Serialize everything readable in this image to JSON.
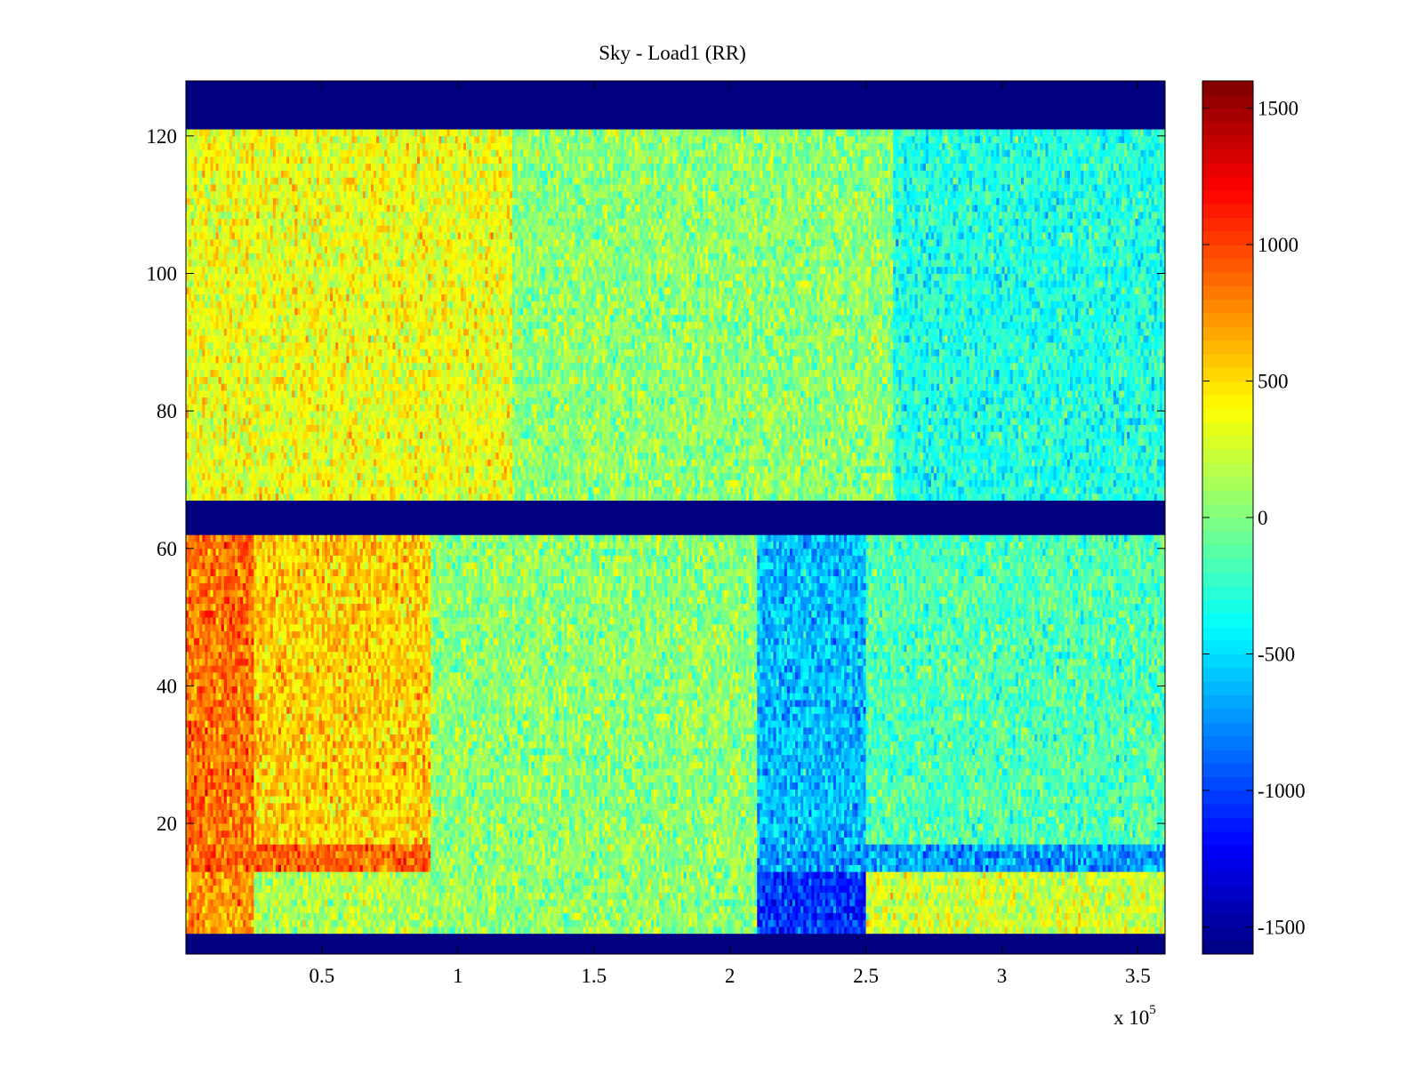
{
  "chart_data": {
    "type": "heatmap",
    "title": "Sky - Load1 (RR)",
    "xlabel": "",
    "ylabel": "",
    "x_multiplier_label": "x 10",
    "x_multiplier_exponent": "5",
    "xlim": [
      0,
      3.6
    ],
    "ylim": [
      1,
      128
    ],
    "xticks": [
      0.5,
      1,
      1.5,
      2,
      2.5,
      3,
      3.5
    ],
    "xtick_labels": [
      "0.5",
      "1",
      "1.5",
      "2",
      "2.5",
      "3",
      "3.5"
    ],
    "yticks": [
      20,
      40,
      60,
      80,
      100,
      120
    ],
    "ytick_labels": [
      "20",
      "40",
      "60",
      "80",
      "100",
      "120"
    ],
    "colormap": "jet",
    "clim": [
      -1600,
      1600
    ],
    "colorbar_ticks": [
      1500,
      1000,
      500,
      0,
      -500,
      -1000,
      -1500
    ],
    "colorbar_tick_labels": [
      "1500",
      "1000",
      "500",
      "0",
      "-500",
      "-1000",
      "-1500"
    ],
    "masked_rows": [
      {
        "y_from": 1,
        "y_to": 4,
        "value": -1600
      },
      {
        "y_from": 62,
        "y_to": 67.5,
        "value": -1600
      },
      {
        "y_from": 121.5,
        "y_to": 128,
        "value": -1600
      }
    ],
    "regions": [
      {
        "x_from": 0,
        "x_to": 0.25,
        "y_from": 17,
        "y_to": 62,
        "mean": 850
      },
      {
        "x_from": 0.25,
        "x_to": 0.9,
        "y_from": 17,
        "y_to": 62,
        "mean": 550
      },
      {
        "x_from": 0,
        "x_to": 0.9,
        "y_from": 13,
        "y_to": 17,
        "mean": 900
      },
      {
        "x_from": 0,
        "x_to": 0.25,
        "y_from": 4,
        "y_to": 13,
        "mean": 700
      },
      {
        "x_from": 0.25,
        "x_to": 0.9,
        "y_from": 4,
        "y_to": 13,
        "mean": 150
      },
      {
        "x_from": 0.9,
        "x_to": 2.1,
        "y_from": 4,
        "y_to": 62,
        "mean": 50
      },
      {
        "x_from": 2.1,
        "x_to": 2.5,
        "y_from": 17,
        "y_to": 62,
        "mean": -600
      },
      {
        "x_from": 2.1,
        "x_to": 2.5,
        "y_from": 4,
        "y_to": 13,
        "mean": -1050
      },
      {
        "x_from": 2.5,
        "x_to": 3.6,
        "y_from": 17,
        "y_to": 62,
        "mean": -150
      },
      {
        "x_from": 2.5,
        "x_to": 3.6,
        "y_from": 4,
        "y_to": 13,
        "mean": 250
      },
      {
        "x_from": 2.1,
        "x_to": 3.6,
        "y_from": 13,
        "y_to": 17,
        "mean": -700
      },
      {
        "x_from": 0,
        "x_to": 1.2,
        "y_from": 67.5,
        "y_to": 121.5,
        "mean": 350
      },
      {
        "x_from": 1.2,
        "x_to": 2.6,
        "y_from": 67.5,
        "y_to": 121.5,
        "mean": 50
      },
      {
        "x_from": 2.6,
        "x_to": 3.6,
        "y_from": 67.5,
        "y_to": 121.5,
        "mean": -300
      }
    ],
    "noise_amplitude": 450,
    "grid": false,
    "legend": "none"
  }
}
